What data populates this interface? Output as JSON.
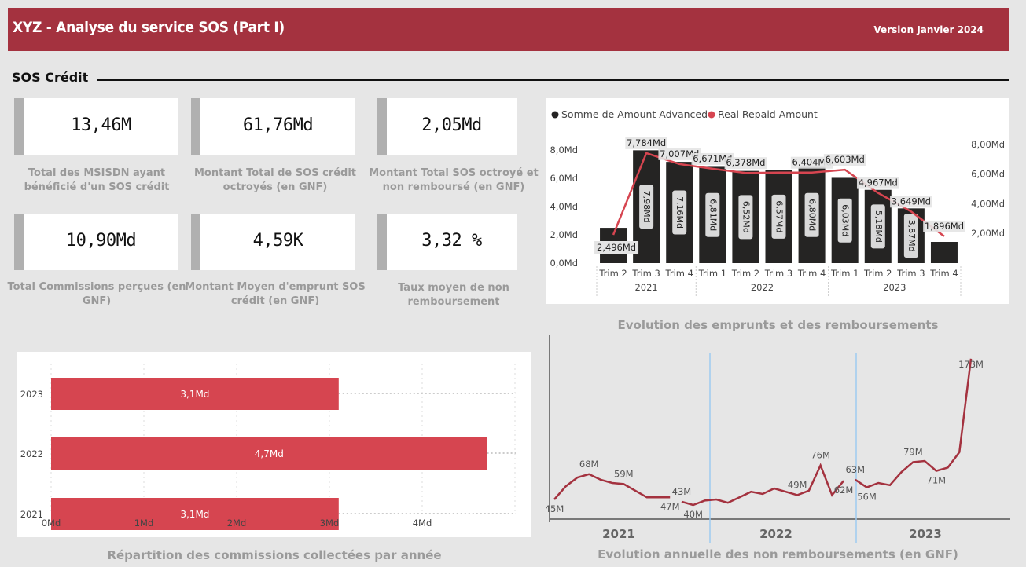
{
  "header": {
    "title": "XYZ  - Analyse du service SOS (Part I)",
    "version": "Version Janvier 2024"
  },
  "section": {
    "title": "SOS Crédit"
  },
  "kpis": [
    {
      "value": "13,46M",
      "label": "Total des MSISDN ayant bénéficié d'un SOS crédit"
    },
    {
      "value": "61,76Md",
      "label": "Montant Total de SOS crédit octroyés (en GNF)"
    },
    {
      "value": "2,05Md",
      "label": "Montant Total SOS octroyé et non remboursé (en GNF)"
    },
    {
      "value": "10,90Md",
      "label": "Total Commissions perçues (en GNF)"
    },
    {
      "value": "4,59K",
      "label": "Montant Moyen d'emprunt SOS crédit (en GNF)"
    },
    {
      "value": "3,32 %",
      "label": "Taux moyen de non remboursement"
    }
  ],
  "colors": {
    "header": "#a4323f",
    "bar_dark": "#252423",
    "line_red": "#d64550",
    "commission_bar": "#d64550",
    "nonrepay_line": "#a4323f",
    "year_divider": "#9ecbf0"
  },
  "chart_data": [
    {
      "type": "bar",
      "title": "Evolution des emprunts et des remboursements",
      "legend": [
        "Somme de Amount Advanced",
        "Real Repaid Amount"
      ],
      "legend_position": "top-left",
      "quarters": [
        "Trim 2",
        "Trim 3",
        "Trim 4",
        "Trim 1",
        "Trim 2",
        "Trim 3",
        "Trim 4",
        "Trim 1",
        "Trim 2",
        "Trim 3",
        "Trim 4"
      ],
      "years": [
        "2021",
        "2022",
        "2023"
      ],
      "year_spans": [
        [
          0,
          2
        ],
        [
          3,
          6
        ],
        [
          7,
          10
        ]
      ],
      "series": [
        {
          "name": "Somme de Amount Advanced",
          "values": [
            2.496,
            7.98,
            7.16,
            6.81,
            6.52,
            6.57,
            6.8,
            6.03,
            5.18,
            3.87,
            1.5
          ],
          "labels": [
            "2,496Md",
            "7,98Md",
            "7,16Md",
            "6,81Md",
            "6,52Md",
            "6,57Md",
            "6,80Md",
            "6,03Md",
            "5,18Md",
            "3,87Md",
            ""
          ]
        },
        {
          "name": "Real Repaid Amount",
          "values": [
            2.0,
            7.784,
            7.007,
            6.671,
            6.378,
            6.4,
            6.404,
            6.603,
            4.967,
            3.649,
            1.896
          ],
          "labels": [
            "",
            "7,784Md",
            "7,007Md",
            "6,671Md",
            "6,378Md",
            "",
            "6,404Md",
            "6,603Md",
            "4,967Md",
            "3,649Md",
            "1,896Md"
          ]
        }
      ],
      "y_ticks": [
        "0,0Md",
        "2,0Md",
        "4,0Md",
        "6,0Md",
        "8,0Md"
      ],
      "y2_ticks": [
        "2,00Md",
        "4,00Md",
        "6,00Md",
        "8,00Md"
      ],
      "ylim": [
        0,
        9
      ]
    },
    {
      "type": "bar",
      "title": "Répartition des commissions collectées par année",
      "categories": [
        "2023",
        "2022",
        "2021"
      ],
      "values": [
        3.1,
        4.7,
        3.1
      ],
      "labels": [
        "3,1Md",
        "4,7Md",
        "3,1Md"
      ],
      "x_ticks": [
        "0Md",
        "1Md",
        "2Md",
        "3Md",
        "4Md"
      ],
      "xlim": [
        0,
        5
      ]
    },
    {
      "type": "line",
      "title": "Evolution annuelle des non remboursements (en GNF)",
      "years": [
        "2021",
        "2022",
        "2023"
      ],
      "values": [
        45,
        57,
        65,
        68,
        63,
        60,
        59,
        53,
        47,
        47,
        47,
        43,
        40,
        44,
        45,
        42,
        47,
        52,
        50,
        55,
        52,
        49,
        53,
        76,
        49,
        62,
        63,
        56,
        60,
        58,
        70,
        79,
        80,
        71,
        74,
        88,
        173
      ],
      "labels": {
        "0": "45M",
        "3": "68M",
        "6": "59M",
        "10": "47M",
        "11": "43M",
        "12": "40M",
        "21": "49M",
        "23": "76M",
        "25": "62M",
        "26": "63M",
        "27": "56M",
        "31": "79M",
        "33": "71M",
        "36": "173M"
      },
      "gaps_after": [
        10,
        25
      ],
      "ylim": [
        30,
        180
      ]
    }
  ]
}
